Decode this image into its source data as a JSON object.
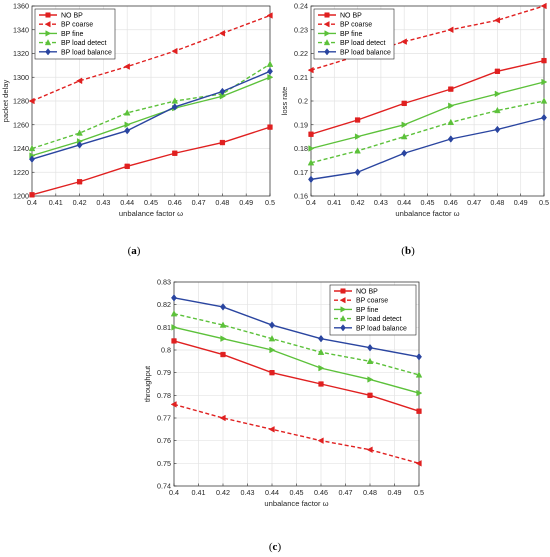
{
  "colors": {
    "no_bp": "#e02020",
    "bp_coarse": "#e02020",
    "bp_fine": "#5cc13a",
    "bp_load_detect": "#5cc13a",
    "bp_load_balance": "#2a45a0",
    "grid": "#e3e3e3",
    "axis": "#262626"
  },
  "chart_data": [
    {
      "id": "a",
      "type": "line",
      "caption": "(a)",
      "xlabel": "unbalance factor ω",
      "ylabel": "packet delay",
      "xlim": [
        0.4,
        0.5
      ],
      "ylim": [
        1200,
        1360
      ],
      "xticks": [
        "0.4",
        "0.41",
        "0.42",
        "0.43",
        "0.44",
        "0.45",
        "0.46",
        "0.47",
        "0.48",
        "0.49",
        "0.5"
      ],
      "yticks": [
        "1200",
        "1220",
        "1240",
        "1260",
        "1280",
        "1300",
        "1320",
        "1340",
        "1360"
      ],
      "grid": true,
      "legend_position": "top-left",
      "x": [
        0.4,
        0.42,
        0.44,
        0.46,
        0.48,
        0.5
      ],
      "series": [
        {
          "name": "NO BP",
          "style": "solid",
          "marker": "square",
          "color_key": "no_bp",
          "values": [
            1201,
            1212,
            1225,
            1236,
            1245,
            1258
          ]
        },
        {
          "name": "BP coarse",
          "style": "dashed",
          "marker": "triangle-left",
          "color_key": "bp_coarse",
          "values": [
            1280,
            1297,
            1309,
            1322,
            1337,
            1352
          ]
        },
        {
          "name": "BP fine",
          "style": "solid",
          "marker": "triangle-right",
          "color_key": "bp_fine",
          "values": [
            1234,
            1246,
            1260,
            1274,
            1284,
            1300
          ]
        },
        {
          "name": "BP load detect",
          "style": "dashed",
          "marker": "triangle-up",
          "color_key": "bp_load_detect",
          "values": [
            1240,
            1253,
            1270,
            1280,
            1286,
            1311
          ]
        },
        {
          "name": "BP load balance",
          "style": "solid",
          "marker": "diamond",
          "color_key": "bp_load_balance",
          "values": [
            1231,
            1243,
            1255,
            1275,
            1288,
            1305
          ]
        }
      ]
    },
    {
      "id": "b",
      "type": "line",
      "caption": "(b)",
      "xlabel": "unbalance factor ω",
      "ylabel": "loss rate",
      "xlim": [
        0.4,
        0.5
      ],
      "ylim": [
        0.16,
        0.24
      ],
      "xticks": [
        "0.4",
        "0.41",
        "0.42",
        "0.43",
        "0.44",
        "0.45",
        "0.46",
        "0.47",
        "0.48",
        "0.49",
        "0.5"
      ],
      "yticks": [
        "0.16",
        "0.17",
        "0.18",
        "0.19",
        "0.2",
        "0.21",
        "0.22",
        "0.23",
        "0.24"
      ],
      "grid": true,
      "legend_position": "top-left",
      "x": [
        0.4,
        0.42,
        0.44,
        0.46,
        0.48,
        0.5
      ],
      "series": [
        {
          "name": "NO BP",
          "style": "solid",
          "marker": "square",
          "color_key": "no_bp",
          "values": [
            0.186,
            0.192,
            0.199,
            0.205,
            0.2125,
            0.217
          ]
        },
        {
          "name": "BP coarse",
          "style": "dashed",
          "marker": "triangle-left",
          "color_key": "bp_coarse",
          "values": [
            0.213,
            0.219,
            0.225,
            0.23,
            0.234,
            0.24
          ]
        },
        {
          "name": "BP fine",
          "style": "solid",
          "marker": "triangle-right",
          "color_key": "bp_fine",
          "values": [
            0.18,
            0.185,
            0.19,
            0.198,
            0.203,
            0.208
          ]
        },
        {
          "name": "BP load detect",
          "style": "dashed",
          "marker": "triangle-up",
          "color_key": "bp_load_detect",
          "values": [
            0.174,
            0.179,
            0.185,
            0.191,
            0.196,
            0.2
          ]
        },
        {
          "name": "BP load balance",
          "style": "solid",
          "marker": "diamond",
          "color_key": "bp_load_balance",
          "values": [
            0.167,
            0.17,
            0.178,
            0.184,
            0.188,
            0.193
          ]
        }
      ]
    },
    {
      "id": "c",
      "type": "line",
      "caption": "(c)",
      "xlabel": "unbalance factor ω",
      "ylabel": "throughput",
      "xlim": [
        0.4,
        0.5
      ],
      "ylim": [
        0.74,
        0.83
      ],
      "xticks": [
        "0.4",
        "0.41",
        "0.42",
        "0.43",
        "0.44",
        "0.45",
        "0.46",
        "0.47",
        "0.48",
        "0.49",
        "0.5"
      ],
      "yticks": [
        "0.74",
        "0.75",
        "0.76",
        "0.77",
        "0.78",
        "0.79",
        "0.8",
        "0.81",
        "0.82",
        "0.83"
      ],
      "grid": true,
      "legend_position": "top-right",
      "x": [
        0.4,
        0.42,
        0.44,
        0.46,
        0.48,
        0.5
      ],
      "series": [
        {
          "name": "NO BP",
          "style": "solid",
          "marker": "square",
          "color_key": "no_bp",
          "values": [
            0.804,
            0.798,
            0.79,
            0.785,
            0.78,
            0.773
          ]
        },
        {
          "name": "BP coarse",
          "style": "dashed",
          "marker": "triangle-left",
          "color_key": "bp_coarse",
          "values": [
            0.776,
            0.77,
            0.765,
            0.76,
            0.756,
            0.75
          ]
        },
        {
          "name": "BP fine",
          "style": "solid",
          "marker": "triangle-right",
          "color_key": "bp_fine",
          "values": [
            0.81,
            0.805,
            0.8,
            0.792,
            0.787,
            0.781
          ]
        },
        {
          "name": "BP load detect",
          "style": "dashed",
          "marker": "triangle-up",
          "color_key": "bp_load_detect",
          "values": [
            0.816,
            0.811,
            0.805,
            0.799,
            0.795,
            0.789
          ]
        },
        {
          "name": "BP load balance",
          "style": "solid",
          "marker": "diamond",
          "color_key": "bp_load_balance",
          "values": [
            0.823,
            0.819,
            0.811,
            0.805,
            0.801,
            0.797
          ]
        }
      ]
    }
  ]
}
